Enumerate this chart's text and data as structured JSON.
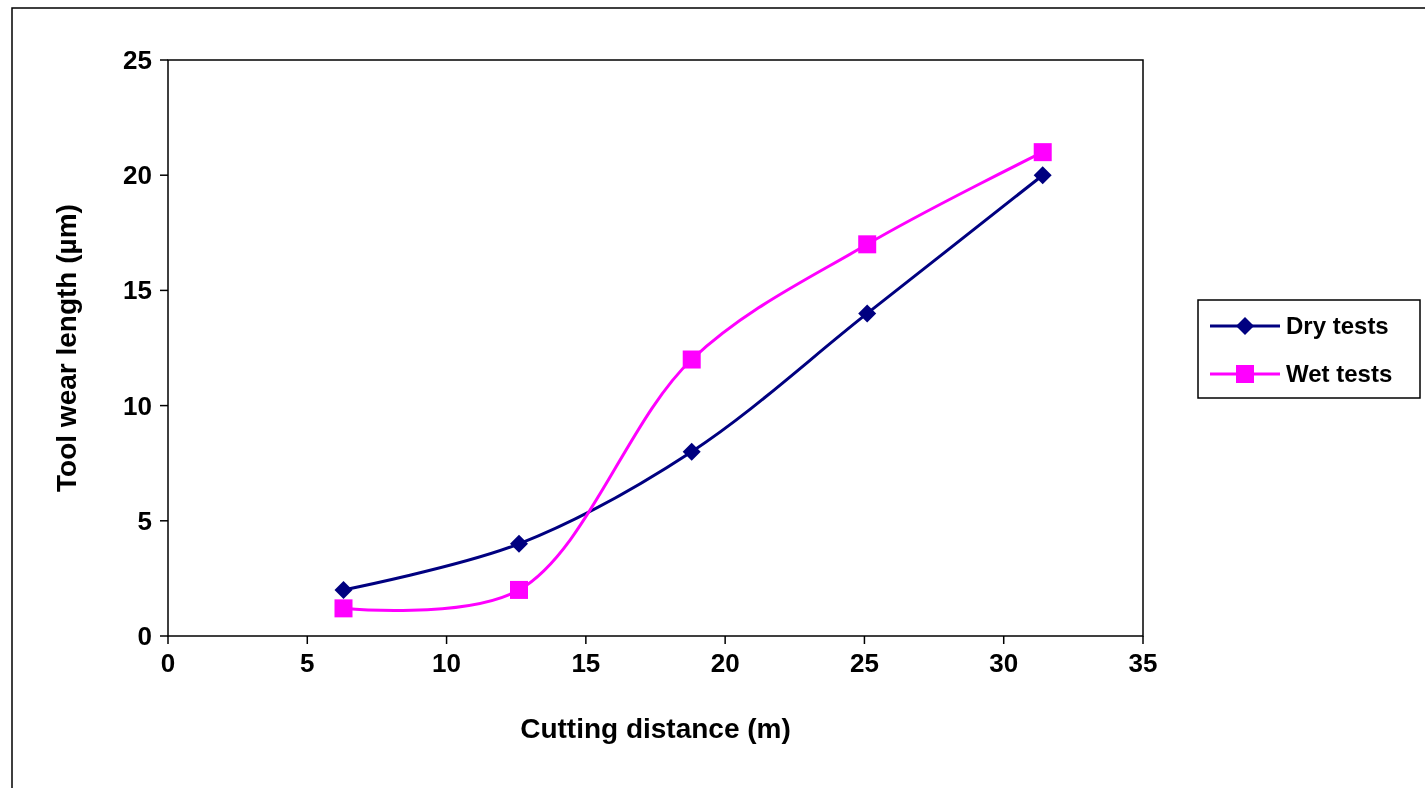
{
  "chart_data": {
    "type": "line",
    "xlabel": "Cutting distance (m)",
    "ylabel": "Tool wear length (µm)",
    "xlim": [
      0,
      35
    ],
    "xticks": [
      0,
      5,
      10,
      15,
      20,
      25,
      30,
      35
    ],
    "ylim": [
      0,
      25
    ],
    "yticks": [
      0,
      5,
      10,
      15,
      20,
      25
    ],
    "grid": false,
    "legend": "right",
    "line_style": "solid",
    "series": [
      {
        "name": "Dry tests",
        "color": "#000080",
        "marker": "diamond",
        "x": [
          6.3,
          12.6,
          18.8,
          25.1,
          31.4
        ],
        "values": [
          2,
          4,
          8,
          14,
          20
        ]
      },
      {
        "name": "Wet tests",
        "color": "#ff00ff",
        "marker": "square",
        "x": [
          6.3,
          12.6,
          18.8,
          25.1,
          31.4
        ],
        "values": [
          1.2,
          2,
          12,
          17,
          21
        ]
      }
    ]
  }
}
